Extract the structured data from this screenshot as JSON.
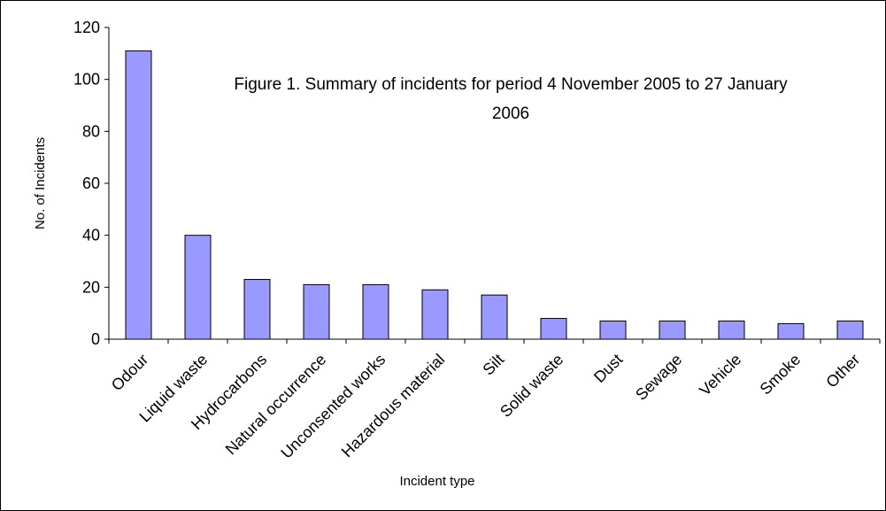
{
  "chart_data": {
    "type": "bar",
    "title_lines": [
      "Figure 1. Summary of incidents for period 4 November 2005 to 27 January",
      "2006"
    ],
    "xlabel": "Incident type",
    "ylabel": "No. of Incidents",
    "ylim": [
      0,
      120
    ],
    "yticks": [
      0,
      20,
      40,
      60,
      80,
      100,
      120
    ],
    "categories": [
      "Odour",
      "Liquid waste",
      "Hydrocarbons",
      "Natural occurrence",
      "Unconsented works",
      "Hazardous material",
      "Silt",
      "Solid waste",
      "Dust",
      "Sewage",
      "Vehicle",
      "Smoke",
      "Other"
    ],
    "series": [
      {
        "values": [
          111,
          40,
          23,
          21,
          21,
          19,
          17,
          8,
          7,
          7,
          7,
          6,
          7
        ]
      }
    ],
    "grid": false,
    "legend": "none",
    "colors": {
      "bar_fill": "#9999ff",
      "bar_stroke": "#000000",
      "axis": "#000000"
    }
  }
}
